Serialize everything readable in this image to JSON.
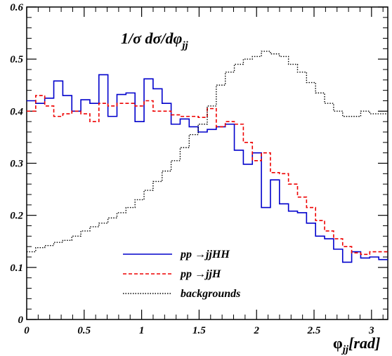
{
  "chart_data": {
    "type": "line",
    "style": "step histogram",
    "title": "1/σ dσ/dφjj",
    "title_parts": {
      "prefix": "1/σ dσ/dφ",
      "sub": "jj"
    },
    "xlabel": "φjj[rad]",
    "xlabel_parts": {
      "main": "φ",
      "sub": "jj",
      "suffix": "[rad]"
    },
    "ylabel": "",
    "xlim": [
      0,
      3.1416
    ],
    "ylim": [
      0,
      0.6
    ],
    "x_ticks": [
      0,
      0.5,
      1,
      1.5,
      2,
      2.5,
      3
    ],
    "x_tick_labels": [
      "0",
      "0.5",
      "1",
      "1.5",
      "2",
      "2.5",
      "3"
    ],
    "y_ticks": [
      0,
      0.1,
      0.2,
      0.3,
      0.4,
      0.5,
      0.6
    ],
    "y_tick_labels": [
      "0",
      "0.1",
      "0.2",
      "0.3",
      "0.4",
      "0.5",
      "0.6"
    ],
    "grid": false,
    "legend_position": "bottom-center",
    "bin_count": 40,
    "series": [
      {
        "name": "pp →jjHH",
        "name_parts": {
          "left": "pp",
          "arrow": "→",
          "right": "jjHH"
        },
        "color": "#0000cc",
        "dash": "solid",
        "values": [
          0.42,
          0.415,
          0.425,
          0.458,
          0.43,
          0.4,
          0.422,
          0.415,
          0.47,
          0.39,
          0.432,
          0.435,
          0.38,
          0.462,
          0.443,
          0.415,
          0.375,
          0.385,
          0.37,
          0.36,
          0.365,
          0.37,
          0.375,
          0.325,
          0.298,
          0.32,
          0.215,
          0.268,
          0.222,
          0.208,
          0.205,
          0.185,
          0.16,
          0.155,
          0.135,
          0.11,
          0.13,
          0.118,
          0.12,
          0.115
        ]
      },
      {
        "name": "pp →jjH",
        "name_parts": {
          "left": "pp",
          "arrow": "→",
          "right": "jjH"
        },
        "color": "#ee0000",
        "dash": "dashed",
        "values": [
          0.4,
          0.43,
          0.41,
          0.39,
          0.395,
          0.4,
          0.395,
          0.38,
          0.415,
          0.41,
          0.415,
          0.415,
          0.41,
          0.42,
          0.4,
          0.4,
          0.393,
          0.39,
          0.39,
          0.388,
          0.405,
          0.37,
          0.38,
          0.375,
          0.34,
          0.305,
          0.32,
          0.282,
          0.28,
          0.26,
          0.235,
          0.215,
          0.19,
          0.17,
          0.155,
          0.14,
          0.128,
          0.125,
          0.13,
          0.13
        ]
      },
      {
        "name": "backgrounds",
        "color": "#000000",
        "dash": "dotted",
        "values": [
          0.13,
          0.138,
          0.142,
          0.148,
          0.152,
          0.16,
          0.17,
          0.178,
          0.185,
          0.195,
          0.205,
          0.215,
          0.23,
          0.248,
          0.265,
          0.285,
          0.305,
          0.33,
          0.355,
          0.375,
          0.41,
          0.45,
          0.475,
          0.49,
          0.5,
          0.505,
          0.515,
          0.51,
          0.505,
          0.49,
          0.475,
          0.455,
          0.435,
          0.415,
          0.4,
          0.39,
          0.39,
          0.4,
          0.395,
          0.395
        ]
      }
    ]
  }
}
